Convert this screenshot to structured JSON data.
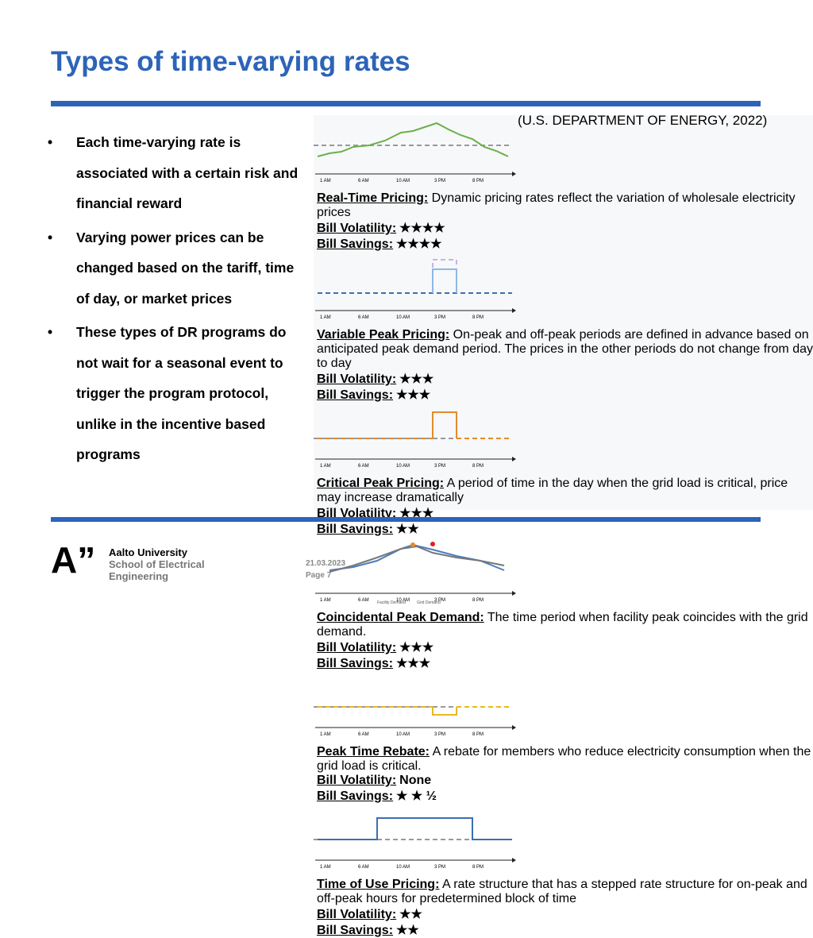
{
  "header": {
    "title": "Types of time-varying rates",
    "citation": "(U.S. DEPARTMENT OF ENERGY, 2022)"
  },
  "bullets": [
    "Each time-varying rate is associated with a certain risk and financial reward",
    "Varying power prices can be changed based on the tariff, time of day, or market prices",
    "These types of DR programs do not wait for a seasonal event to trigger the program protocol, unlike in the incentive based programs"
  ],
  "figure": {
    "time_labels": [
      "1 AM",
      "6 AM",
      "10 AM",
      "3 PM",
      "8 PM"
    ],
    "rating_labels": {
      "volatility": "Bill Volatility:",
      "savings": "Bill Savings:"
    },
    "panels": [
      {
        "name": "Real-Time Pricing:",
        "text": "Dynamic pricing rates reflect the variation of wholesale electricity prices",
        "volatility": "★★★★",
        "savings": "★★★★"
      },
      {
        "name": "Variable Peak Pricing:",
        "text": "On-peak and off-peak periods are defined in advance based on anticipated peak demand period. The prices in the other periods do not change from day to day",
        "volatility": "★★★",
        "savings": "★★★"
      },
      {
        "name": "Critical Peak Pricing:",
        "text": "A period of time in the day when the grid load is critical, price may increase dramatically",
        "volatility": "★★★",
        "savings": "★★"
      },
      {
        "name": "Coincidental Peak Demand:",
        "text": "The time period when facility peak coincides with the grid demand.",
        "volatility": "★★★",
        "savings": "★★★",
        "legend": [
          "Facility Demand",
          "Grid Demand"
        ]
      },
      {
        "name": "Peak Time Rebate:",
        "text": "A rebate for members who reduce electricity consumption when the grid load is critical.",
        "volatility": "None",
        "savings": "★ ★ ½"
      },
      {
        "name": "Time of Use Pricing:",
        "text": "A rate structure that has a stepped rate structure for on-peak and off-peak hours for predetermined block of time",
        "volatility": "★★",
        "savings": "★★"
      }
    ]
  },
  "footer": {
    "org": "Aalto University",
    "school": "School of Electrical Engineering",
    "date": "21.03.2023",
    "page": "Page 7"
  }
}
